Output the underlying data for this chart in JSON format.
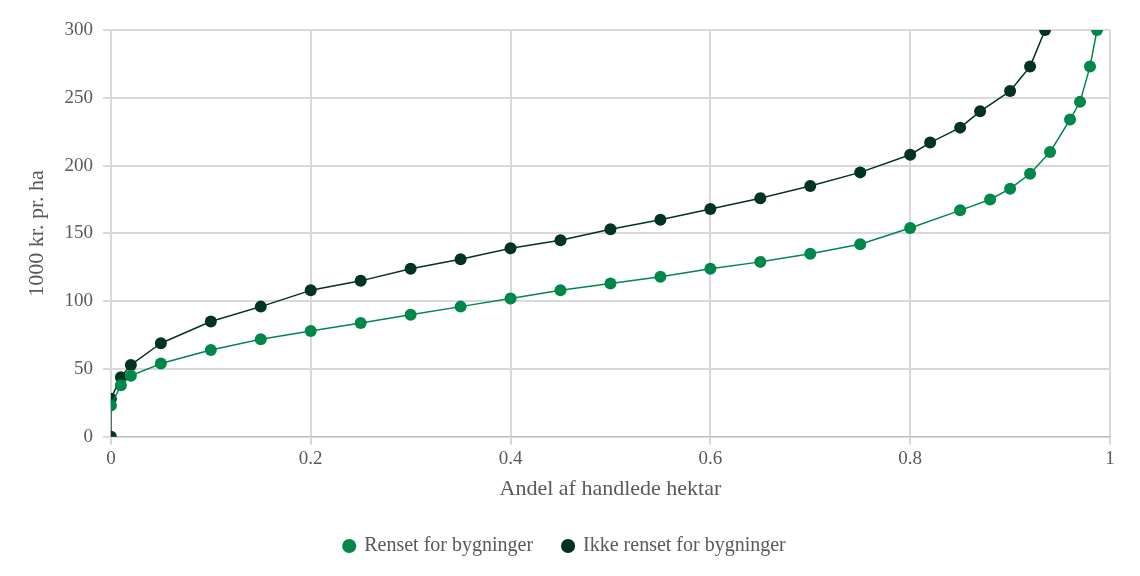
{
  "chart_data": {
    "type": "line",
    "xlabel": "Andel af handlede hektar",
    "ylabel": "1000 kr. pr. ha",
    "xlim": [
      0,
      1
    ],
    "xticks": [
      0,
      0.2,
      0.4,
      0.6,
      0.8,
      1
    ],
    "ylim": [
      0,
      300
    ],
    "yticks": [
      0,
      50,
      100,
      150,
      200,
      250,
      300
    ],
    "grid": true,
    "legend": "bottom",
    "marker": "circle",
    "line_style": "solid",
    "series": [
      {
        "name": "Renset for bygninger",
        "color": "#00874a",
        "x": [
          0,
          0.01,
          0.02,
          0.05,
          0.1,
          0.15,
          0.2,
          0.25,
          0.3,
          0.35,
          0.4,
          0.45,
          0.5,
          0.55,
          0.6,
          0.65,
          0.7,
          0.75,
          0.8,
          0.85,
          0.88,
          0.9,
          0.92,
          0.94,
          0.96,
          0.97,
          0.98,
          0.987
        ],
        "values": [
          23,
          38,
          45,
          54,
          64,
          72,
          78,
          84,
          90,
          96,
          102,
          108,
          113,
          118,
          124,
          129,
          135,
          142,
          154,
          167,
          175,
          183,
          194,
          210,
          234,
          247,
          273,
          300
        ]
      },
      {
        "name": "Ikke renset for bygninger",
        "color": "#003322",
        "x": [
          0,
          0,
          0.01,
          0.02,
          0.05,
          0.1,
          0.15,
          0.2,
          0.25,
          0.3,
          0.35,
          0.4,
          0.45,
          0.5,
          0.55,
          0.6,
          0.65,
          0.7,
          0.75,
          0.8,
          0.82,
          0.85,
          0.87,
          0.9,
          0.92,
          0.935
        ],
        "values": [
          0,
          28,
          44,
          53,
          69,
          85,
          96,
          108,
          115,
          124,
          131,
          139,
          145,
          153,
          160,
          168,
          176,
          185,
          195,
          208,
          217,
          228,
          240,
          255,
          273,
          300
        ]
      }
    ]
  }
}
